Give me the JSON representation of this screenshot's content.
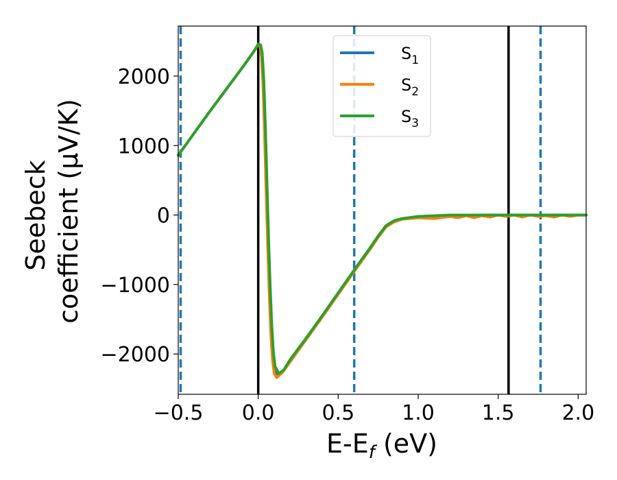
{
  "chart_data": {
    "type": "line",
    "title": "",
    "xlabel": "E-E_f (eV)",
    "ylabel_line1": "Seebeck",
    "ylabel_line2": "coefficient  (μV/K)",
    "xlim": [
      -0.5,
      2.05
    ],
    "ylim": [
      -2580,
      2720
    ],
    "xticks": [
      -0.5,
      0.0,
      0.5,
      1.0,
      1.5,
      2.0
    ],
    "xtick_labels": [
      "−0.5",
      "0.0",
      "0.5",
      "1.0",
      "1.5",
      "2.0"
    ],
    "yticks": [
      -2000,
      -1000,
      0,
      1000,
      2000
    ],
    "ytick_labels": [
      "−2000",
      "−1000",
      "0",
      "1000",
      "2000"
    ],
    "grid": false,
    "legend_position": "top-center",
    "vertical_lines_solid": [
      0.0,
      1.565
    ],
    "vertical_lines_dashed": [
      -0.485,
      0.6,
      1.765
    ],
    "series": [
      {
        "name": "S",
        "subscript": "1",
        "color": "#1f77b4",
        "x": [
          -0.5,
          -0.4,
          -0.3,
          -0.2,
          -0.1,
          -0.05,
          -0.02,
          0.0,
          0.01,
          0.02,
          0.03,
          0.04,
          0.05,
          0.06,
          0.07,
          0.08,
          0.09,
          0.1,
          0.12,
          0.15,
          0.2,
          0.3,
          0.4,
          0.5,
          0.6,
          0.7,
          0.75,
          0.8,
          0.85,
          0.9,
          1.0,
          1.1,
          1.2,
          1.3,
          1.4,
          1.5,
          1.6,
          1.7,
          1.8,
          1.9,
          2.0,
          2.05
        ],
        "y": [
          860,
          1180,
          1500,
          1810,
          2120,
          2280,
          2380,
          2460,
          2440,
          2300,
          1900,
          1200,
          400,
          -400,
          -1100,
          -1650,
          -2000,
          -2200,
          -2310,
          -2260,
          -2100,
          -1780,
          -1460,
          -1130,
          -800,
          -480,
          -310,
          -160,
          -90,
          -60,
          -30,
          -15,
          -5,
          -5,
          0,
          0,
          0,
          0,
          0,
          0,
          0,
          0
        ]
      },
      {
        "name": "S",
        "subscript": "2",
        "color": "#ff7f0e",
        "x": [
          -0.5,
          -0.4,
          -0.3,
          -0.2,
          -0.1,
          -0.05,
          -0.02,
          0.0,
          0.01,
          0.02,
          0.03,
          0.04,
          0.05,
          0.06,
          0.07,
          0.08,
          0.09,
          0.1,
          0.115,
          0.15,
          0.2,
          0.3,
          0.4,
          0.5,
          0.6,
          0.7,
          0.75,
          0.8,
          0.85,
          0.9,
          1.0,
          1.1,
          1.2,
          1.25,
          1.3,
          1.35,
          1.4,
          1.45,
          1.5,
          1.55,
          1.6,
          1.65,
          1.7,
          1.75,
          1.8,
          1.85,
          1.9,
          1.95,
          2.0,
          2.05
        ],
        "y": [
          860,
          1180,
          1500,
          1810,
          2120,
          2280,
          2380,
          2460,
          2440,
          2300,
          1880,
          1150,
          300,
          -500,
          -1200,
          -1750,
          -2100,
          -2280,
          -2340,
          -2270,
          -2110,
          -1790,
          -1470,
          -1140,
          -810,
          -490,
          -320,
          -170,
          -100,
          -60,
          -40,
          -50,
          -20,
          -40,
          -10,
          -40,
          -10,
          -30,
          0,
          -20,
          0,
          -30,
          0,
          -20,
          -10,
          -30,
          0,
          -20,
          0,
          0
        ]
      },
      {
        "name": "S",
        "subscript": "3",
        "color": "#2ca02c",
        "x": [
          -0.5,
          -0.4,
          -0.3,
          -0.2,
          -0.1,
          -0.05,
          -0.02,
          0.0,
          0.015,
          0.025,
          0.035,
          0.045,
          0.055,
          0.065,
          0.075,
          0.085,
          0.095,
          0.105,
          0.13,
          0.16,
          0.2,
          0.3,
          0.4,
          0.5,
          0.6,
          0.7,
          0.75,
          0.8,
          0.85,
          0.9,
          1.0,
          1.1,
          1.2,
          1.3,
          1.4,
          1.5,
          1.6,
          1.7,
          1.8,
          1.9,
          2.0,
          2.05
        ],
        "y": [
          860,
          1180,
          1500,
          1810,
          2120,
          2280,
          2380,
          2460,
          2450,
          2330,
          1950,
          1250,
          450,
          -350,
          -1050,
          -1600,
          -1980,
          -2180,
          -2280,
          -2230,
          -2080,
          -1770,
          -1450,
          -1120,
          -790,
          -470,
          -300,
          -150,
          -80,
          -50,
          -20,
          -10,
          0,
          0,
          0,
          0,
          0,
          0,
          0,
          0,
          0,
          0
        ]
      }
    ]
  }
}
